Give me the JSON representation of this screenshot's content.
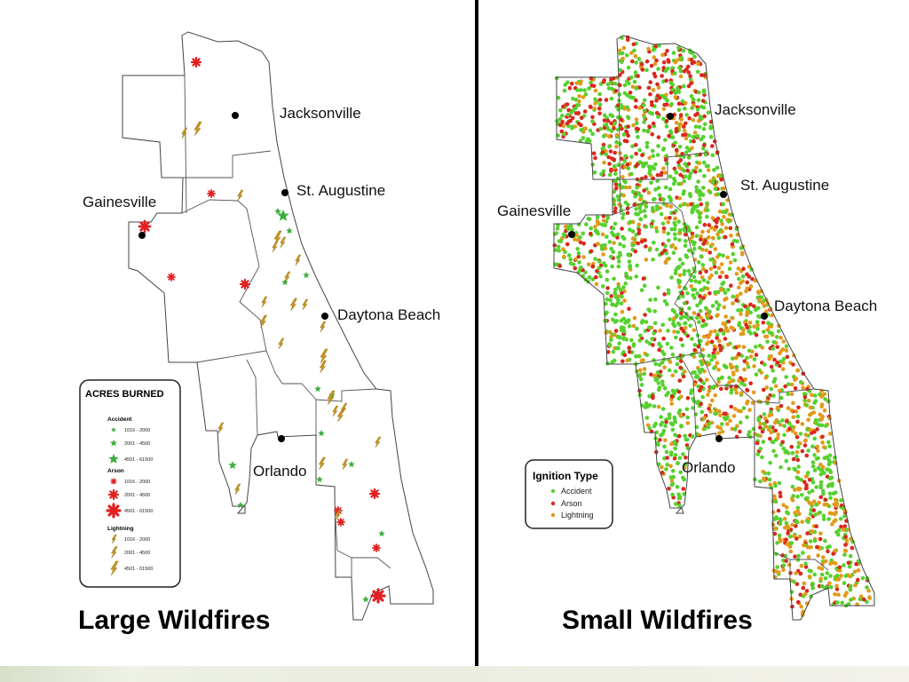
{
  "left_map": {
    "title": "Large Wildfires",
    "cities": {
      "jacksonville": "Jacksonville",
      "st_augustine": "St. Augustine",
      "gainesville": "Gainesville",
      "daytona": "Daytona Beach",
      "orlando": "Orlando"
    },
    "legend": {
      "title": "ACRES BURNED",
      "groups": [
        {
          "name": "Accident",
          "ranges": [
            "1016 - 2000",
            "2001 - 4500",
            "4501 - 61500"
          ]
        },
        {
          "name": "Arson",
          "ranges": [
            "1016 - 2000",
            "2001 - 4500",
            "4501 - 61500"
          ]
        },
        {
          "name": "Lightning",
          "ranges": [
            "1016 - 2000",
            "2001 - 4500",
            "4501 - 61500"
          ]
        }
      ]
    },
    "symbols": {
      "accident": "star-icon",
      "arson": "asterisk-icon",
      "lightning": "lightning-icon"
    }
  },
  "right_map": {
    "title": "Small Wildfires",
    "cities": {
      "jacksonville": "Jacksonville",
      "st_augustine": "St. Augustine",
      "gainesville": "Gainesville",
      "daytona": "Daytona Beach",
      "orlando": "Orlando"
    },
    "legend": {
      "title": "Ignition Type",
      "items": [
        "Accident",
        "Arson",
        "Lightning"
      ]
    }
  },
  "colors": {
    "accident": "#3fae3f",
    "arson": "#e02020",
    "lightning": "#c8961e",
    "small_accident": "#55d12e",
    "small_arson": "#d9281e",
    "small_lightning": "#e29a1c"
  }
}
